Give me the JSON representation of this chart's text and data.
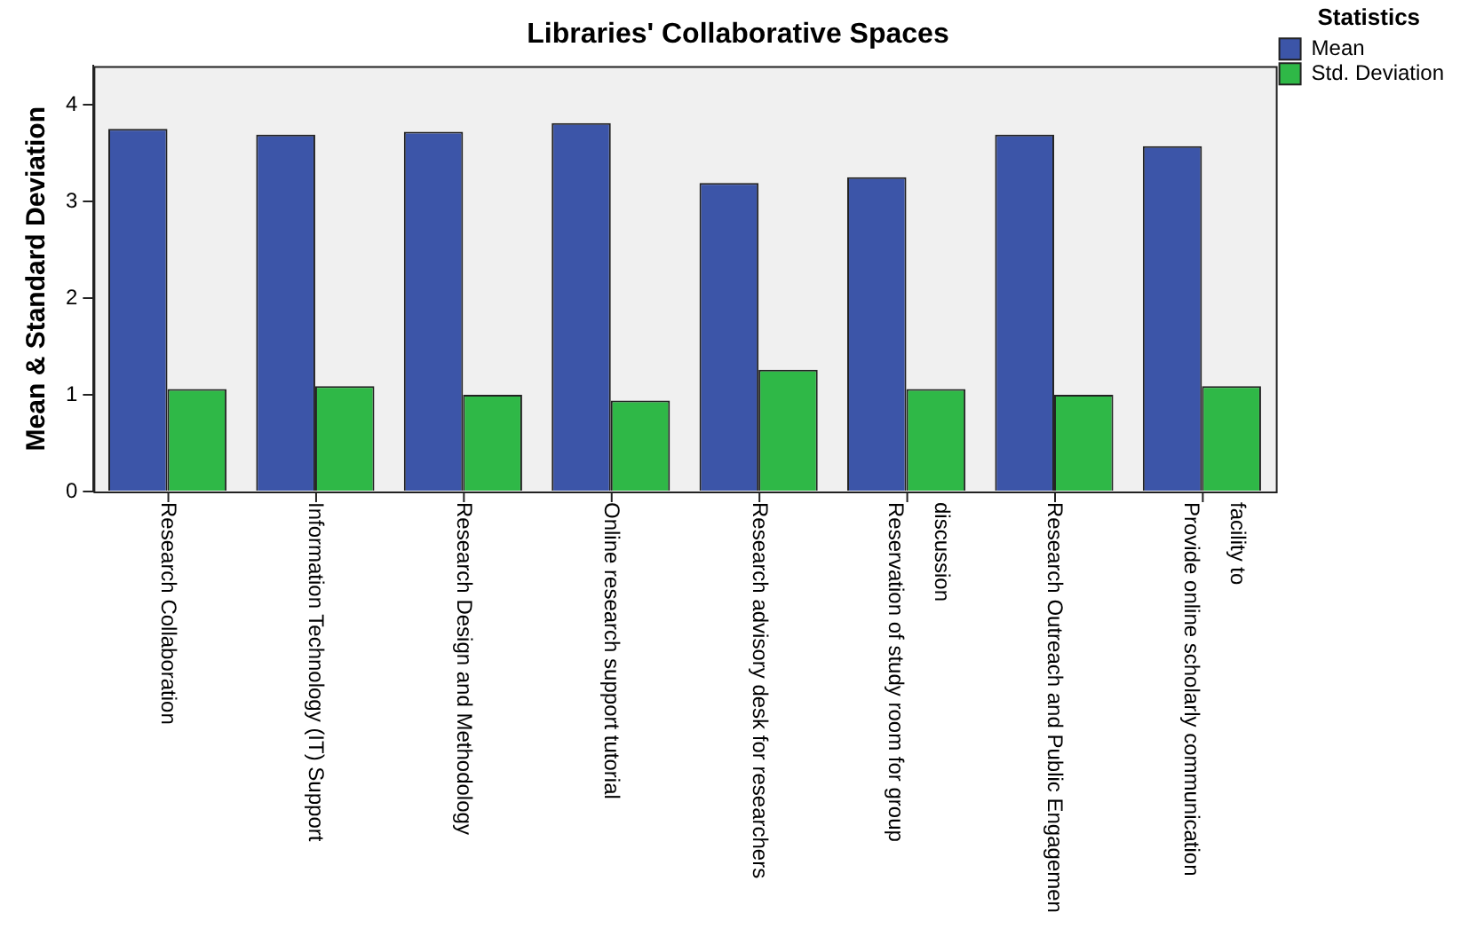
{
  "chart_data": {
    "type": "bar",
    "title": "Libraries' Collaborative Spaces",
    "ylabel": "Mean & Standard Deviation",
    "legend_title": "Statistics",
    "categories": [
      "Research Collaboration",
      "Information Technology (IT) Support",
      "Research Design and Methodology",
      "Online research support tutorial",
      "Research advisory desk for researchers",
      "Reservation of study room for group\ndiscussion",
      "Research Outreach and Public Engagemen",
      "Provide online scholarly communication\nfacility to"
    ],
    "series": [
      {
        "name": "Mean",
        "color": "#3c55a8",
        "values": [
          3.75,
          3.69,
          3.72,
          3.81,
          3.19,
          3.25,
          3.69,
          3.57
        ]
      },
      {
        "name": "Std. Deviation",
        "color": "#2fb847",
        "values": [
          1.06,
          1.09,
          1.0,
          0.94,
          1.26,
          1.06,
          1.0,
          1.09
        ]
      }
    ],
    "ylim": [
      0,
      4.4
    ],
    "yticks": [
      0,
      1,
      2,
      3,
      4
    ],
    "grid": false,
    "legend": "top right"
  }
}
